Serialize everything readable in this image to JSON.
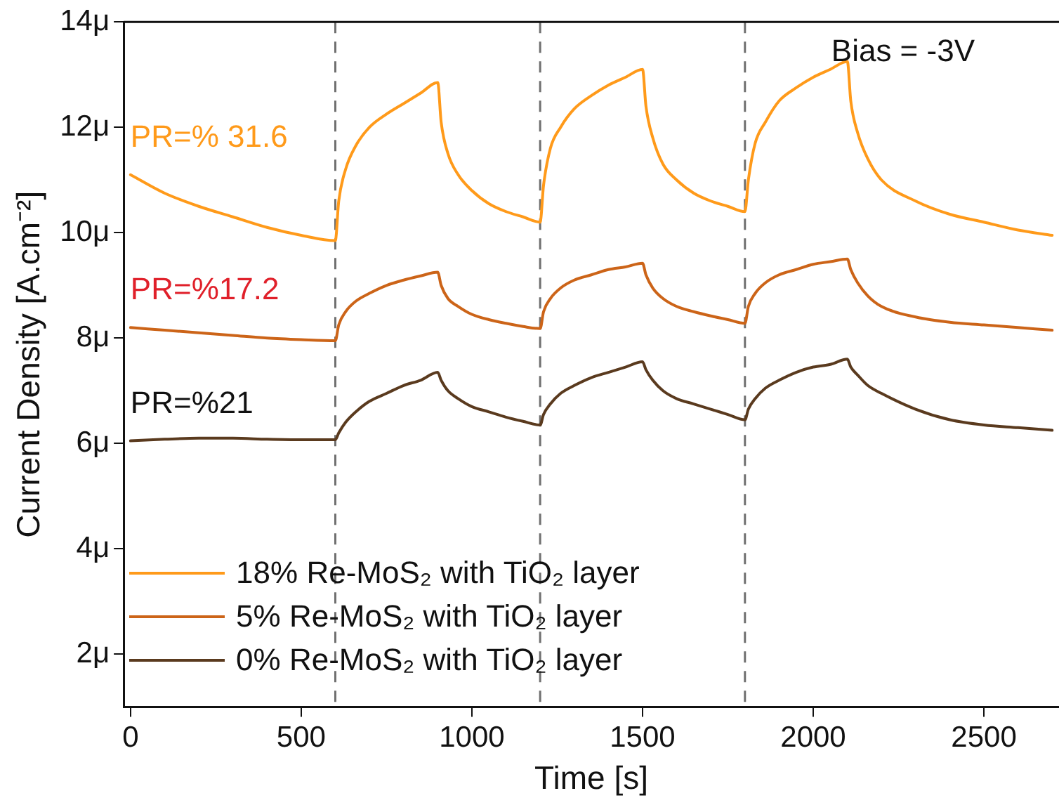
{
  "chart_data": {
    "type": "line",
    "xlabel": "Time [s]",
    "ylabel": "Current Density [A.cm⁻²]",
    "x": [
      0,
      100,
      200,
      300,
      400,
      500,
      600,
      610,
      630,
      660,
      700,
      750,
      800,
      850,
      900,
      910,
      930,
      960,
      1000,
      1050,
      1100,
      1150,
      1200,
      1210,
      1230,
      1260,
      1300,
      1350,
      1400,
      1450,
      1500,
      1510,
      1530,
      1560,
      1600,
      1650,
      1700,
      1750,
      1800,
      1810,
      1830,
      1860,
      1900,
      1950,
      2000,
      2050,
      2100,
      2110,
      2130,
      2160,
      2200,
      2300,
      2400,
      2500,
      2600,
      2700
    ],
    "series": [
      {
        "name": "18% Re-MoS₂ with TiO₂ layer",
        "color": "#ff9a1a",
        "values": [
          11.1,
          10.75,
          10.5,
          10.3,
          10.1,
          9.95,
          9.85,
          10.6,
          11.2,
          11.65,
          12.0,
          12.25,
          12.45,
          12.65,
          12.85,
          12.1,
          11.5,
          11.1,
          10.8,
          10.55,
          10.4,
          10.3,
          10.2,
          10.9,
          11.6,
          12.0,
          12.35,
          12.6,
          12.8,
          12.95,
          13.1,
          12.4,
          11.8,
          11.3,
          11.0,
          10.75,
          10.6,
          10.5,
          10.4,
          11.0,
          11.7,
          12.1,
          12.5,
          12.75,
          12.95,
          13.1,
          13.25,
          12.5,
          11.9,
          11.4,
          11.0,
          10.6,
          10.35,
          10.2,
          10.05,
          9.95
        ]
      },
      {
        "name": "5% Re-MoS₂ with TiO₂ layer",
        "color": "#cc6418",
        "values": [
          8.2,
          8.15,
          8.1,
          8.05,
          8.0,
          7.97,
          7.95,
          8.25,
          8.5,
          8.7,
          8.85,
          9.0,
          9.1,
          9.18,
          9.25,
          9.0,
          8.75,
          8.6,
          8.45,
          8.35,
          8.28,
          8.22,
          8.18,
          8.5,
          8.75,
          8.95,
          9.1,
          9.2,
          9.3,
          9.35,
          9.42,
          9.2,
          8.95,
          8.75,
          8.6,
          8.5,
          8.42,
          8.35,
          8.28,
          8.6,
          8.85,
          9.05,
          9.2,
          9.3,
          9.4,
          9.45,
          9.5,
          9.3,
          9.05,
          8.8,
          8.6,
          8.4,
          8.3,
          8.25,
          8.2,
          8.15
        ]
      },
      {
        "name": "0% Re-MoS₂ with TiO₂ layer",
        "color": "#5a3a1e",
        "values": [
          6.05,
          6.08,
          6.1,
          6.1,
          6.08,
          6.07,
          6.07,
          6.2,
          6.4,
          6.6,
          6.8,
          6.95,
          7.1,
          7.2,
          7.35,
          7.2,
          7.0,
          6.85,
          6.7,
          6.6,
          6.5,
          6.42,
          6.35,
          6.55,
          6.75,
          6.95,
          7.1,
          7.25,
          7.35,
          7.45,
          7.55,
          7.4,
          7.2,
          7.0,
          6.85,
          6.75,
          6.65,
          6.55,
          6.45,
          6.65,
          6.85,
          7.05,
          7.2,
          7.35,
          7.45,
          7.5,
          7.6,
          7.45,
          7.3,
          7.1,
          6.95,
          6.65,
          6.45,
          6.35,
          6.3,
          6.25
        ]
      }
    ],
    "xlim": [
      -20,
      2720
    ],
    "xticks": [
      0,
      500,
      1000,
      1500,
      2000,
      2500
    ],
    "ylim": [
      1,
      14
    ],
    "yticks": [
      {
        "value": 2,
        "label": "2μ"
      },
      {
        "value": 4,
        "label": "4μ"
      },
      {
        "value": 6,
        "label": "6μ"
      },
      {
        "value": 8,
        "label": "8μ"
      },
      {
        "value": 10,
        "label": "10μ"
      },
      {
        "value": 12,
        "label": "12μ"
      },
      {
        "value": 14,
        "label": "14μ"
      }
    ],
    "ref_lines": [
      {
        "axis": "x",
        "value": 600,
        "color": "#707070",
        "line_style": "dashed"
      },
      {
        "axis": "x",
        "value": 1200,
        "color": "#707070",
        "line_style": "dashed"
      },
      {
        "axis": "x",
        "value": 1800,
        "color": "#707070",
        "line_style": "dashed"
      }
    ],
    "annotations": [
      "PR=% 31.6",
      "PR=%17.2",
      "PR=%21",
      "Bias = -3V"
    ],
    "grid": false,
    "legend": "bottom left",
    "marker": "none",
    "line_style": "solid"
  }
}
